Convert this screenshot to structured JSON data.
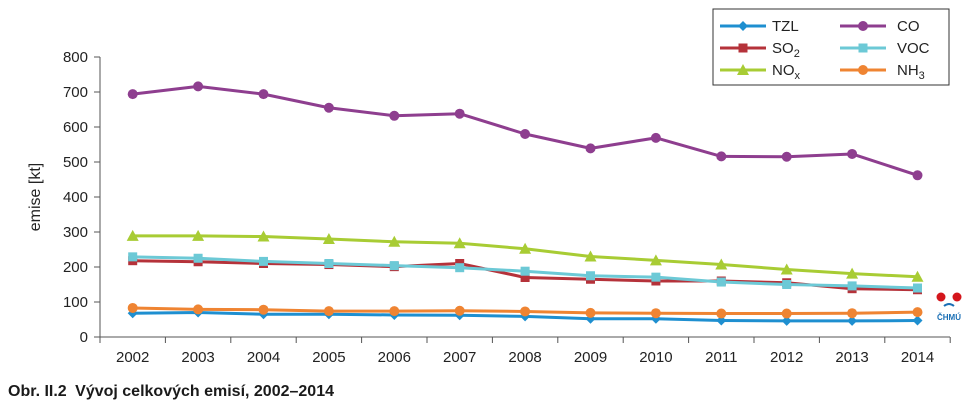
{
  "caption": {
    "number": "Obr. II.2",
    "text": "Vývoj celkových emisí, 2002–2014"
  },
  "logo": {
    "text": "ČHMÚ"
  },
  "chart_data": {
    "type": "line",
    "ylabel": "emise [kt]",
    "xlabel": "",
    "ylim": [
      0,
      800
    ],
    "yticks": [
      0,
      100,
      200,
      300,
      400,
      500,
      600,
      700,
      800
    ],
    "grid": false,
    "legend_position": "top-right",
    "categories": [
      "2002",
      "2003",
      "2004",
      "2005",
      "2006",
      "2007",
      "2008",
      "2009",
      "2010",
      "2011",
      "2012",
      "2013",
      "2014"
    ],
    "series": [
      {
        "name": "TZL",
        "label_main": "TZL",
        "label_sub": "",
        "color": "#1e8fd0",
        "marker": "diamond",
        "values": [
          68,
          70,
          65,
          65,
          63,
          62,
          59,
          52,
          52,
          47,
          46,
          46,
          47
        ]
      },
      {
        "name": "SO2",
        "label_main": "SO",
        "label_sub": "2",
        "color": "#b5323a",
        "marker": "square",
        "values": [
          218,
          215,
          210,
          207,
          201,
          210,
          170,
          165,
          160,
          160,
          155,
          138,
          135
        ]
      },
      {
        "name": "NOx",
        "label_main": "NO",
        "label_sub": "x",
        "color": "#a8cc34",
        "marker": "triangle",
        "values": [
          289,
          289,
          287,
          280,
          272,
          268,
          252,
          230,
          219,
          207,
          193,
          181,
          172
        ]
      },
      {
        "name": "CO",
        "label_main": "CO",
        "label_sub": "",
        "color": "#8e3e8f",
        "marker": "circle",
        "values": [
          694,
          716,
          694,
          655,
          632,
          638,
          580,
          539,
          569,
          516,
          515,
          523,
          462
        ]
      },
      {
        "name": "VOC",
        "label_main": "VOC",
        "label_sub": "",
        "color": "#6cc9d6",
        "marker": "square",
        "values": [
          229,
          225,
          216,
          210,
          204,
          198,
          188,
          175,
          171,
          157,
          150,
          146,
          140
        ]
      },
      {
        "name": "NH3",
        "label_main": "NH",
        "label_sub": "3",
        "color": "#ef8432",
        "marker": "circle",
        "values": [
          83,
          79,
          78,
          74,
          74,
          75,
          73,
          69,
          68,
          67,
          67,
          68,
          71
        ]
      }
    ]
  }
}
